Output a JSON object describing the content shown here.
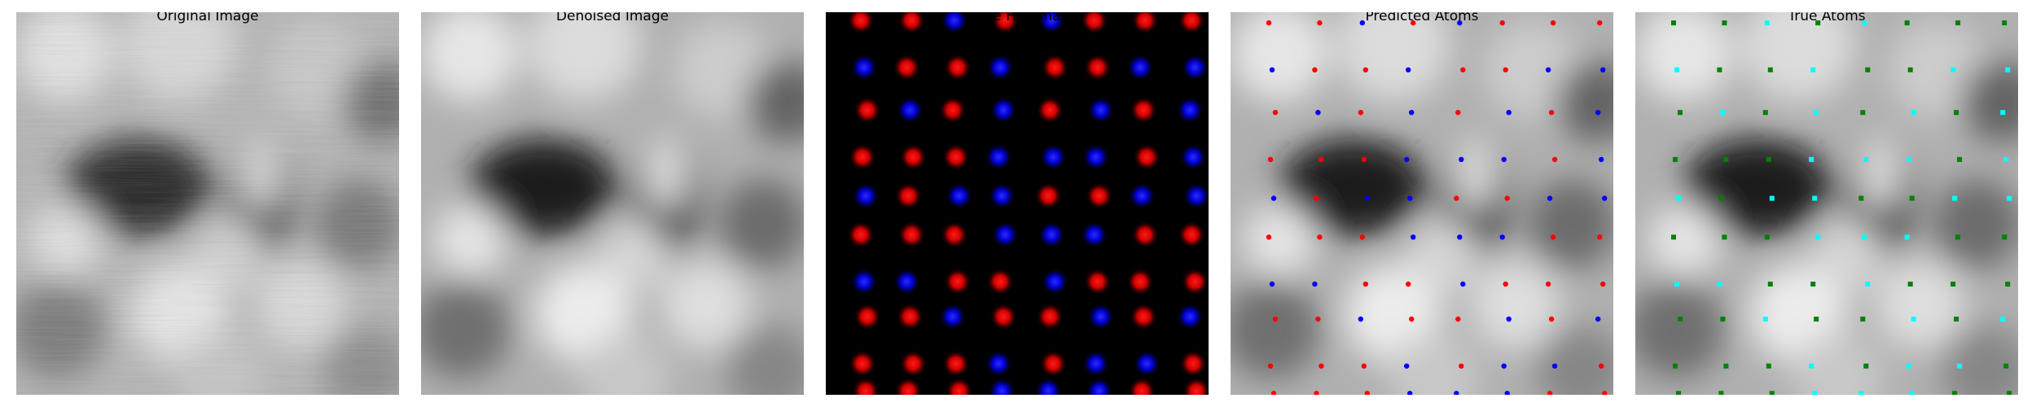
{
  "panels": [
    {
      "title": "Original Image"
    },
    {
      "title": "Denoised Image"
    },
    {
      "title": "Te/Se Heatmap"
    },
    {
      "title": "Predicted Atoms"
    },
    {
      "title": "True Atoms"
    }
  ],
  "colors": {
    "te_red": "#ff0000",
    "se_blue": "#0000ff",
    "true_te_green": "#008000",
    "true_se_cyan": "#00ffff",
    "background": "#000000"
  },
  "atom_columns": [
    0.1,
    0.22,
    0.34,
    0.46,
    0.59,
    0.71,
    0.83,
    0.96
  ],
  "atom_rows": [
    0.03,
    0.14,
    0.26,
    0.37,
    0.48,
    0.59,
    0.7,
    0.8,
    0.91,
    0.99
  ],
  "atom_types": [
    [
      "Te",
      "Te",
      "Se",
      "Te",
      "Se",
      "Te",
      "Te",
      "Te"
    ],
    [
      "Se",
      "Te",
      "Te",
      "Se",
      "Te",
      "Te",
      "Se",
      "Se"
    ],
    [
      "Te",
      "Se",
      "Te",
      "Se",
      "Te",
      "Se",
      "Te",
      "Se"
    ],
    [
      "Te",
      "Te",
      "Te",
      "Se",
      "Se",
      "Se",
      "Te",
      "Se"
    ],
    [
      "Se",
      "Te",
      "Se",
      "Se",
      "Te",
      "Te",
      "Se",
      "Se"
    ],
    [
      "Te",
      "Te",
      "Te",
      "Se",
      "Se",
      "Se",
      "Te",
      "Te"
    ],
    [
      "Se",
      "Se",
      "Te",
      "Te",
      "Se",
      "Te",
      "Te",
      "Te"
    ],
    [
      "Te",
      "Te",
      "Se",
      "Te",
      "Te",
      "Se",
      "Te",
      "Se"
    ],
    [
      "Te",
      "Te",
      "Te",
      "Se",
      "Te",
      "Se",
      "Se",
      "Te"
    ],
    [
      "Te",
      "Te",
      "Te",
      "Se",
      "Se",
      "Se",
      "Te",
      "Te"
    ]
  ]
}
